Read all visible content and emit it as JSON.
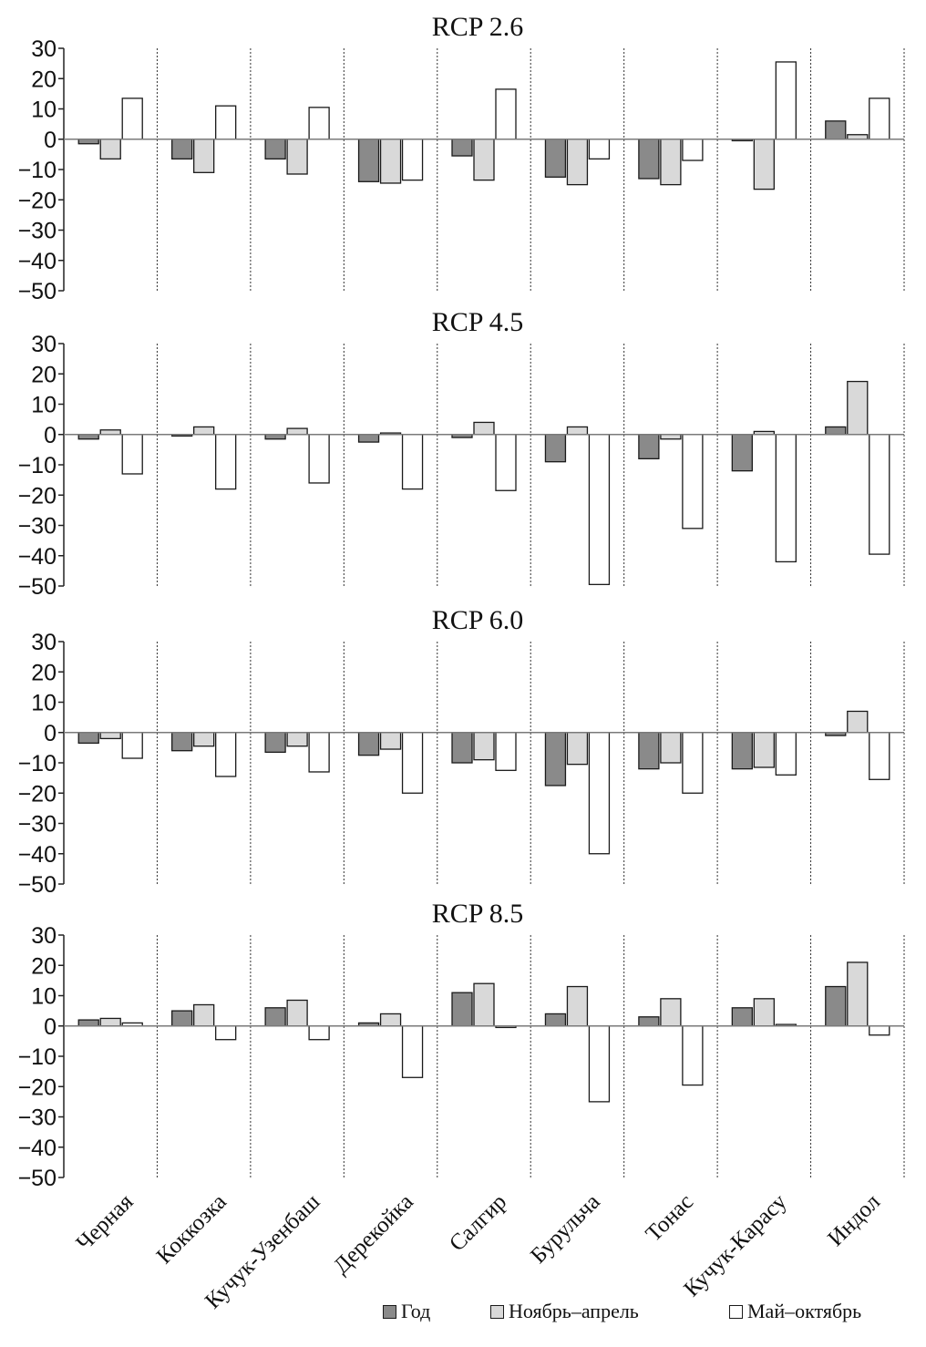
{
  "colors": {
    "year": "#8a8a8a",
    "winter": "#d9d9d9",
    "summer": "#ffffff",
    "stroke": "#1a1a1a",
    "zero_line": "#7a7a7a",
    "separator": "#333333"
  },
  "legend": {
    "items": [
      {
        "label": "Год",
        "color": "#8a8a8a"
      },
      {
        "label": "Ноябрь–апрель",
        "color": "#d9d9d9"
      },
      {
        "label": "Май–октябрь",
        "color": "#ffffff"
      }
    ]
  },
  "chart_data": {
    "type": "bar",
    "categories": [
      "Черная",
      "Коккозка",
      "Кучук-Узенбаш",
      "Дерекойка",
      "Салгир",
      "Бурульча",
      "Тонас",
      "Кучук-Карасу",
      "Индол"
    ],
    "yticks": [
      "30",
      "20",
      "10",
      "0",
      "−10",
      "−20",
      "−30",
      "−40",
      "−50"
    ],
    "ylim": [
      -50,
      30
    ],
    "grid": false,
    "legend_position": "bottom",
    "panels": [
      {
        "title": "RCP 2.6",
        "series": [
          {
            "name": "Год",
            "values": [
              -1.5,
              -6.5,
              -6.5,
              -14,
              -5.5,
              -12.5,
              -13,
              -0.5,
              6
            ]
          },
          {
            "name": "Ноябрь–апрель",
            "values": [
              -6.5,
              -11,
              -11.5,
              -14.5,
              -13.5,
              -15,
              -15,
              -16.5,
              1.5
            ]
          },
          {
            "name": "Май–октябрь",
            "values": [
              13.5,
              11,
              10.5,
              -13.5,
              16.5,
              -6.5,
              -7,
              25.5,
              13.5
            ]
          }
        ]
      },
      {
        "title": "RCP 4.5",
        "series": [
          {
            "name": "Год",
            "values": [
              -1.5,
              -0.5,
              -1.5,
              -2.5,
              -1,
              -9,
              -8,
              -12,
              2.5
            ]
          },
          {
            "name": "Ноябрь–апрель",
            "values": [
              1.5,
              2.5,
              2,
              0.5,
              4,
              2.5,
              -1.5,
              1,
              17.5
            ]
          },
          {
            "name": "Май–октябрь",
            "values": [
              -13,
              -18,
              -16,
              -18,
              -18.5,
              -49.5,
              -31,
              -42,
              -39.5
            ]
          }
        ]
      },
      {
        "title": "RCP 6.0",
        "series": [
          {
            "name": "Год",
            "values": [
              -3.5,
              -6,
              -6.5,
              -7.5,
              -10,
              -17.5,
              -12,
              -12,
              -1
            ]
          },
          {
            "name": "Ноябрь–апрель",
            "values": [
              -2,
              -4.5,
              -4.5,
              -5.5,
              -9,
              -10.5,
              -10,
              -11.5,
              7
            ]
          },
          {
            "name": "Май–октябрь",
            "values": [
              -8.5,
              -14.5,
              -13,
              -20,
              -12.5,
              -40,
              -20,
              -14,
              -15.5
            ]
          }
        ]
      },
      {
        "title": "RCP 8.5",
        "series": [
          {
            "name": "Год",
            "values": [
              2,
              5,
              6,
              1,
              11,
              4,
              3,
              6,
              13
            ]
          },
          {
            "name": "Ноябрь–апрель",
            "values": [
              2.5,
              7,
              8.5,
              4,
              14,
              13,
              9,
              9,
              21
            ]
          },
          {
            "name": "Май–октябрь",
            "values": [
              1,
              -4.5,
              -4.5,
              -17,
              -0.5,
              -25,
              -19.5,
              0.5,
              -3
            ]
          }
        ]
      }
    ]
  }
}
